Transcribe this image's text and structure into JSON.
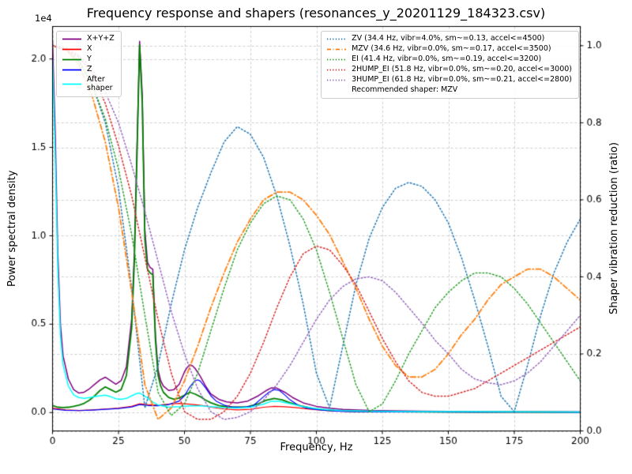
{
  "figure": {
    "title": "Frequency response and shapers (resonances_y_20201129_184323.csv)"
  },
  "legend_note": "Recommended shaper: MZV",
  "chart_data": {
    "type": "line",
    "title": "Frequency response and shapers (resonances_y_20201129_184323.csv)",
    "grid": true,
    "legend_positions": [
      "upper left",
      "upper right"
    ],
    "axes": {
      "x": {
        "label": "Frequency, Hz",
        "min": 0,
        "max": 200,
        "ticks": [
          0,
          25,
          50,
          75,
          100,
          125,
          150,
          175,
          200
        ],
        "tick_labels": [
          "0",
          "25",
          "50",
          "75",
          "100",
          "125",
          "150",
          "175",
          "200"
        ]
      },
      "y_left": {
        "label": "Power spectral density",
        "offset_text": "1e4",
        "min": -1040,
        "max": 21840,
        "ticks": [
          0,
          5000,
          10000,
          15000,
          20000
        ],
        "tick_labels": [
          "0.0",
          "0.5",
          "1.0",
          "1.5",
          "2.0"
        ]
      },
      "y_right": {
        "label": "Shaper vibration reduction (ratio)",
        "min": 0,
        "max": 1.05,
        "ticks": [
          0,
          0.2,
          0.4,
          0.6,
          0.8,
          1.0
        ],
        "tick_labels": [
          "0.0",
          "0.2",
          "0.4",
          "0.6",
          "0.8",
          "1.0"
        ]
      }
    },
    "psd_series": [
      {
        "name": "psd-sum",
        "label": "X+Y+Z",
        "color": "#800080",
        "style": "solid",
        "width": 1.5,
        "axis": "left",
        "x": [
          0,
          1,
          2,
          3,
          4,
          6,
          8,
          10,
          12,
          14,
          16,
          18,
          20,
          22,
          24,
          26,
          28,
          30,
          31,
          32,
          33,
          34,
          35,
          36,
          37,
          38,
          39,
          40,
          41,
          42,
          44,
          46,
          48,
          50,
          51,
          52,
          53,
          54,
          56,
          58,
          60,
          63,
          66,
          70,
          74,
          78,
          81,
          83,
          85,
          88,
          91,
          95,
          100,
          105,
          110,
          120,
          140,
          160,
          180,
          200
        ],
        "y": [
          21000,
          16000,
          9000,
          5000,
          3200,
          1900,
          1300,
          1100,
          1150,
          1350,
          1600,
          1850,
          2000,
          1800,
          1600,
          1800,
          2600,
          5300,
          9000,
          15000,
          21000,
          18000,
          10300,
          8500,
          8200,
          8100,
          4400,
          2400,
          1800,
          1500,
          1250,
          1300,
          1600,
          2300,
          2550,
          2700,
          2650,
          2500,
          2050,
          1500,
          1050,
          750,
          600,
          550,
          650,
          950,
          1250,
          1400,
          1380,
          1150,
          850,
          550,
          350,
          250,
          180,
          120,
          80,
          60,
          50,
          40
        ]
      },
      {
        "name": "psd-x",
        "label": "X",
        "color": "#ff0000",
        "style": "solid",
        "width": 1.2,
        "axis": "left",
        "x": [
          0,
          5,
          10,
          15,
          20,
          25,
          30,
          33,
          36,
          40,
          44,
          48,
          50,
          52,
          55,
          58,
          60,
          65,
          70,
          75,
          80,
          84,
          88,
          92,
          96,
          100,
          105,
          110,
          120,
          140,
          160,
          180,
          200
        ],
        "y": [
          250,
          150,
          120,
          150,
          200,
          250,
          350,
          500,
          450,
          420,
          480,
          520,
          500,
          470,
          430,
          380,
          300,
          200,
          150,
          180,
          300,
          350,
          330,
          280,
          220,
          160,
          100,
          70,
          50,
          40,
          30,
          25,
          20
        ]
      },
      {
        "name": "psd-y",
        "label": "Y",
        "color": "#008000",
        "style": "solid",
        "width": 1.8,
        "axis": "left",
        "x": [
          0,
          2,
          4,
          6,
          8,
          10,
          12,
          14,
          16,
          18,
          20,
          22,
          24,
          26,
          28,
          30,
          31,
          32,
          33,
          34,
          35,
          36,
          37,
          38,
          39,
          40,
          41,
          42,
          44,
          46,
          48,
          50,
          52,
          54,
          56,
          58,
          60,
          63,
          66,
          70,
          74,
          78,
          81,
          84,
          87,
          90,
          94,
          98,
          102,
          106,
          110,
          120,
          140,
          160,
          180,
          200
        ],
        "y": [
          400,
          300,
          280,
          300,
          350,
          420,
          520,
          700,
          950,
          1250,
          1450,
          1300,
          1150,
          1300,
          2100,
          4800,
          8500,
          14500,
          20800,
          17500,
          9800,
          8100,
          7900,
          7800,
          4100,
          2100,
          1500,
          1150,
          850,
          750,
          820,
          980,
          1150,
          1050,
          900,
          700,
          550,
          400,
          330,
          300,
          330,
          500,
          700,
          800,
          720,
          550,
          380,
          250,
          160,
          120,
          90,
          60,
          40,
          30,
          25,
          20
        ]
      },
      {
        "name": "psd-z",
        "label": "Z",
        "color": "#0000ff",
        "style": "solid",
        "width": 1.2,
        "axis": "left",
        "x": [
          0,
          5,
          10,
          15,
          20,
          25,
          30,
          33,
          36,
          40,
          44,
          48,
          50,
          52,
          54,
          55,
          56,
          58,
          60,
          62,
          65,
          68,
          72,
          76,
          80,
          82,
          84,
          86,
          88,
          90,
          93,
          96,
          100,
          104,
          108,
          112,
          120,
          140,
          160,
          180,
          200
        ],
        "y": [
          200,
          130,
          110,
          140,
          180,
          230,
          320,
          450,
          400,
          380,
          450,
          650,
          950,
          1450,
          1800,
          1850,
          1780,
          1400,
          950,
          650,
          420,
          320,
          300,
          380,
          900,
          1150,
          1300,
          1250,
          1000,
          720,
          420,
          260,
          170,
          110,
          80,
          60,
          45,
          35,
          30,
          25,
          20
        ]
      },
      {
        "name": "psd-after-shaper",
        "label": "After\nshaper",
        "color": "#00ffff",
        "style": "solid",
        "width": 1.5,
        "axis": "left",
        "x": [
          0,
          1,
          2,
          3,
          4,
          6,
          8,
          10,
          12,
          14,
          16,
          18,
          20,
          22,
          24,
          26,
          28,
          30,
          32,
          33,
          34,
          36,
          38,
          40,
          44,
          48,
          52,
          56,
          60,
          65,
          70,
          75,
          80,
          83,
          86,
          90,
          95,
          100,
          105,
          110,
          120,
          140,
          160,
          180,
          200
        ],
        "y": [
          20000,
          14500,
          8000,
          4300,
          2700,
          1500,
          1000,
          850,
          800,
          850,
          900,
          950,
          980,
          900,
          780,
          750,
          800,
          950,
          1080,
          1100,
          1020,
          820,
          600,
          430,
          300,
          330,
          380,
          380,
          330,
          280,
          260,
          300,
          480,
          640,
          640,
          500,
          330,
          220,
          150,
          110,
          80,
          60,
          50,
          40,
          35
        ]
      }
    ],
    "shaper_x": [
      0,
      5,
      10,
      15,
      20,
      25,
      30,
      35,
      40,
      45,
      50,
      55,
      60,
      65,
      70,
      75,
      80,
      85,
      90,
      95,
      100,
      105,
      110,
      115,
      120,
      125,
      130,
      135,
      140,
      145,
      150,
      155,
      160,
      165,
      170,
      175,
      180,
      185,
      190,
      195,
      200
    ],
    "shaper_series": [
      {
        "name": "shaper-zv",
        "label": "ZV (34.4 Hz, vibr=4.0%, sm~=0.13, accel<=4500)",
        "color": "#1f77b4",
        "style": "dotted",
        "width": 1.5,
        "axis": "right",
        "y": [
          1.0,
          0.99,
          0.96,
          0.9,
          0.8,
          0.63,
          0.37,
          0.06,
          0.17,
          0.33,
          0.47,
          0.58,
          0.67,
          0.75,
          0.79,
          0.77,
          0.71,
          0.61,
          0.48,
          0.33,
          0.15,
          0.06,
          0.22,
          0.38,
          0.5,
          0.58,
          0.63,
          0.645,
          0.635,
          0.6,
          0.54,
          0.45,
          0.34,
          0.22,
          0.09,
          0.05,
          0.17,
          0.3,
          0.41,
          0.49,
          0.55
        ]
      },
      {
        "name": "shaper-mzv",
        "label": "MZV (34.6 Hz, vibr=0.0%, sm~=0.17, accel<=3500)",
        "color": "#ff7f0e",
        "style": "dashdot",
        "width": 1.8,
        "axis": "right",
        "y": [
          1.0,
          0.99,
          0.95,
          0.87,
          0.75,
          0.58,
          0.36,
          0.12,
          0.03,
          0.06,
          0.13,
          0.22,
          0.32,
          0.41,
          0.49,
          0.55,
          0.6,
          0.62,
          0.62,
          0.6,
          0.56,
          0.51,
          0.44,
          0.37,
          0.29,
          0.22,
          0.17,
          0.14,
          0.14,
          0.16,
          0.2,
          0.25,
          0.29,
          0.34,
          0.38,
          0.4,
          0.42,
          0.42,
          0.4,
          0.37,
          0.34
        ]
      },
      {
        "name": "shaper-ei",
        "label": "EI (41.4 Hz, vibr=0.0%, sm~=0.19, accel<=3200)",
        "color": "#2ca02c",
        "style": "dotted",
        "width": 1.5,
        "axis": "right",
        "y": [
          1.0,
          0.99,
          0.96,
          0.9,
          0.81,
          0.68,
          0.51,
          0.3,
          0.1,
          0.04,
          0.07,
          0.15,
          0.26,
          0.37,
          0.47,
          0.54,
          0.59,
          0.61,
          0.6,
          0.55,
          0.47,
          0.36,
          0.24,
          0.12,
          0.05,
          0.07,
          0.13,
          0.2,
          0.26,
          0.32,
          0.36,
          0.39,
          0.41,
          0.41,
          0.4,
          0.37,
          0.33,
          0.28,
          0.23,
          0.18,
          0.13
        ]
      },
      {
        "name": "shaper-2hump-ei",
        "label": "2HUMP_EI (51.8 Hz, vibr=0.0%, sm~=0.20, accel<=3000)",
        "color": "#d62728",
        "style": "dotted",
        "width": 1.5,
        "axis": "right",
        "y": [
          1.0,
          0.99,
          0.97,
          0.93,
          0.85,
          0.74,
          0.61,
          0.45,
          0.29,
          0.15,
          0.05,
          0.03,
          0.03,
          0.05,
          0.09,
          0.15,
          0.23,
          0.32,
          0.4,
          0.46,
          0.48,
          0.47,
          0.43,
          0.38,
          0.31,
          0.24,
          0.18,
          0.13,
          0.1,
          0.09,
          0.09,
          0.1,
          0.11,
          0.13,
          0.15,
          0.17,
          0.19,
          0.21,
          0.23,
          0.25,
          0.27
        ]
      },
      {
        "name": "shaper-3hump-ei",
        "label": "3HUMP_EI (61.8 Hz, vibr=0.0%, sm~=0.21, accel<=2800)",
        "color": "#9467bd",
        "style": "dotted",
        "width": 1.5,
        "axis": "right",
        "y": [
          1.0,
          0.995,
          0.975,
          0.94,
          0.88,
          0.8,
          0.69,
          0.57,
          0.44,
          0.31,
          0.2,
          0.11,
          0.05,
          0.03,
          0.035,
          0.05,
          0.08,
          0.12,
          0.17,
          0.23,
          0.29,
          0.34,
          0.375,
          0.395,
          0.4,
          0.39,
          0.36,
          0.32,
          0.28,
          0.235,
          0.2,
          0.16,
          0.135,
          0.125,
          0.12,
          0.13,
          0.15,
          0.18,
          0.22,
          0.26,
          0.3
        ]
      }
    ]
  }
}
